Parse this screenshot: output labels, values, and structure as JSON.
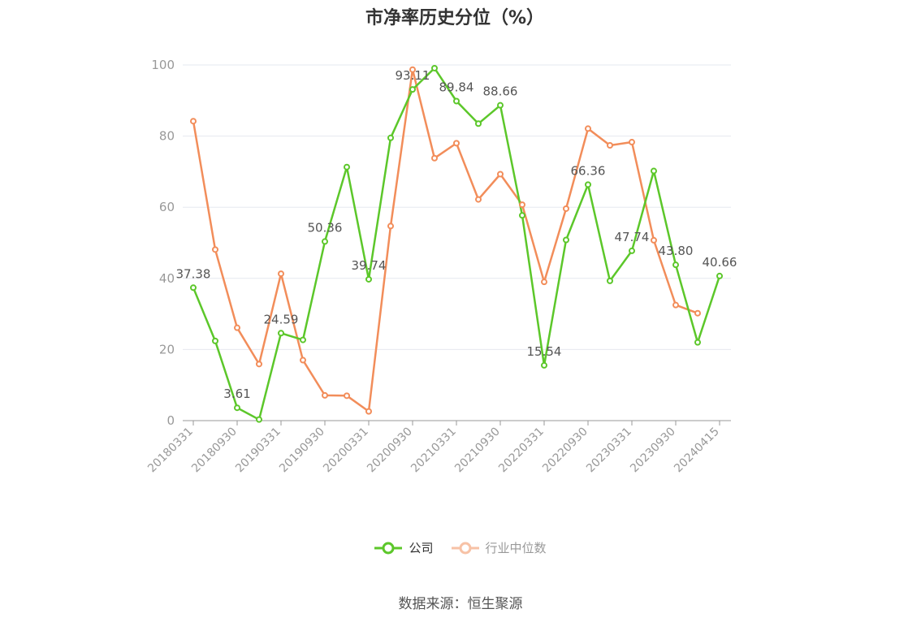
{
  "chart_data": {
    "type": "line",
    "title": "市净率历史分位（%）",
    "source": "数据来源：恒生聚源",
    "x_tick_labels": [
      "20180331",
      "20180930",
      "20190331",
      "20190930",
      "20200331",
      "20200930",
      "20210331",
      "20210930",
      "20220331",
      "20220930",
      "20230331",
      "20230930",
      "20240415"
    ],
    "x": [
      "20180331",
      "20180630",
      "20180930",
      "20181231",
      "20190331",
      "20190630",
      "20190930",
      "20191231",
      "20200331",
      "20200630",
      "20200930",
      "20201231",
      "20210331",
      "20210630",
      "20210930",
      "20211231",
      "20220331",
      "20220630",
      "20220930",
      "20221231",
      "20230331",
      "20230630",
      "20230930",
      "20231231",
      "20240415"
    ],
    "ylim": [
      0,
      100
    ],
    "y_ticks": [
      0,
      20,
      40,
      60,
      80,
      100
    ],
    "grid": true,
    "legend_position": "bottom",
    "series": [
      {
        "name": "公司",
        "color": "#5cc72a",
        "values": [
          37.38,
          22.4,
          3.61,
          0.3,
          24.59,
          22.7,
          50.36,
          71.3,
          39.74,
          79.5,
          93.11,
          99.1,
          89.84,
          83.5,
          88.66,
          57.7,
          15.54,
          50.8,
          66.36,
          39.3,
          47.74,
          70.2,
          43.8,
          22.0,
          40.66
        ],
        "labels": [
          "37.38",
          "",
          "3.61",
          "",
          "24.59",
          "",
          "50.36",
          "",
          "39.74",
          "",
          "93.11",
          "",
          "89.84",
          "",
          "88.66",
          "",
          "15.54",
          "",
          "66.36",
          "",
          "47.74",
          "",
          "43.80",
          "",
          "40.66"
        ]
      },
      {
        "name": "行业中位数",
        "color": "#f28d5a",
        "values": [
          84.2,
          48.1,
          26.1,
          15.9,
          41.3,
          17.0,
          7.1,
          7.0,
          2.6,
          54.7,
          98.7,
          73.8,
          78.0,
          62.2,
          69.3,
          60.7,
          39.0,
          59.6,
          82.1,
          77.4,
          78.3,
          50.7,
          32.5,
          30.2,
          null
        ]
      }
    ]
  }
}
